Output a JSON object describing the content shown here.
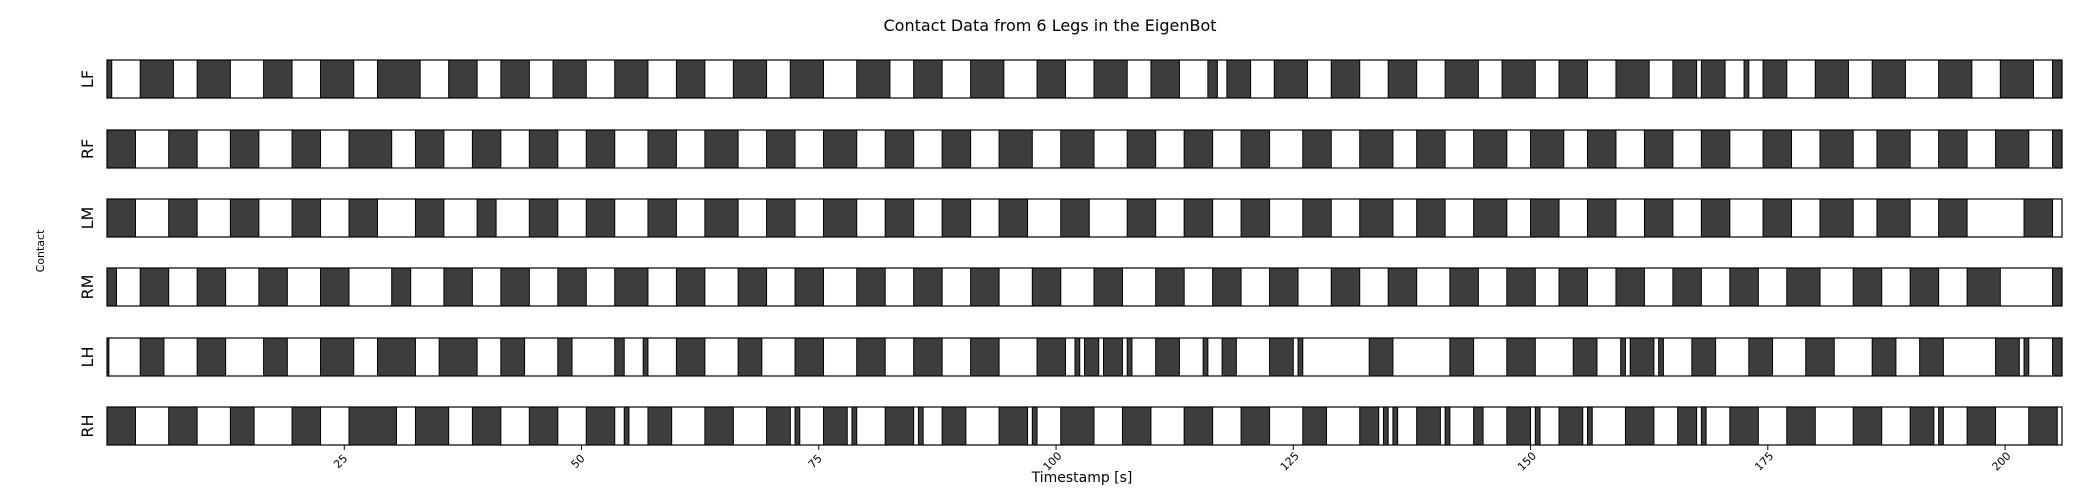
{
  "chart_data": {
    "type": "gait-contact-raster",
    "title": "Contact Data from 6 Legs in the EigenBot",
    "xlabel": "Timestamp [s]",
    "ylabel": "Contact",
    "xlim": [
      0,
      206
    ],
    "xticks": [
      25,
      50,
      75,
      100,
      125,
      150,
      175,
      200
    ],
    "grid": false,
    "colors": {
      "contact": "#3d3d3d",
      "swing": "#ffffff",
      "edge": "#000000"
    },
    "legs": [
      {
        "name": "LF",
        "contact": [
          [
            0,
            0.5
          ],
          [
            3.5,
            7
          ],
          [
            9.5,
            13
          ],
          [
            16.5,
            19.5
          ],
          [
            22.5,
            26
          ],
          [
            28.5,
            33
          ],
          [
            36,
            39
          ],
          [
            41.5,
            44.5
          ],
          [
            47,
            50.5
          ],
          [
            53.5,
            57
          ],
          [
            60,
            63
          ],
          [
            66,
            69.5
          ],
          [
            72,
            75.5
          ],
          [
            79,
            82.5
          ],
          [
            85,
            88
          ],
          [
            91,
            94.5
          ],
          [
            98,
            101
          ],
          [
            104,
            107.5
          ],
          [
            110,
            113
          ],
          [
            116,
            117
          ],
          [
            118,
            120.5
          ],
          [
            123,
            126.5
          ],
          [
            129,
            132
          ],
          [
            135,
            138
          ],
          [
            141,
            144.5
          ],
          [
            147,
            150.5
          ],
          [
            153,
            156
          ],
          [
            159,
            162.5
          ],
          [
            165,
            167.5
          ],
          [
            168,
            170.5
          ],
          [
            172.5,
            173
          ],
          [
            174.5,
            177
          ],
          [
            180,
            183.5
          ],
          [
            186,
            189.5
          ],
          [
            193,
            196.5
          ],
          [
            199.5,
            203
          ],
          [
            205,
            206
          ]
        ]
      },
      {
        "name": "RF",
        "contact": [
          [
            0,
            3
          ],
          [
            6.5,
            9.5
          ],
          [
            13,
            16
          ],
          [
            19.5,
            22.5
          ],
          [
            25.5,
            30
          ],
          [
            32.5,
            35.5
          ],
          [
            38.5,
            41.5
          ],
          [
            44.5,
            47.5
          ],
          [
            50.5,
            53.5
          ],
          [
            57,
            60
          ],
          [
            63,
            66.5
          ],
          [
            69.5,
            72.5
          ],
          [
            75.5,
            79
          ],
          [
            82,
            85
          ],
          [
            88,
            91
          ],
          [
            94,
            97.5
          ],
          [
            100.5,
            104
          ],
          [
            107.5,
            110.5
          ],
          [
            113.5,
            116.5
          ],
          [
            119.5,
            122.5
          ],
          [
            126,
            129
          ],
          [
            132,
            135.5
          ],
          [
            138,
            141
          ],
          [
            144,
            147.5
          ],
          [
            150,
            153.5
          ],
          [
            156,
            159
          ],
          [
            162,
            165
          ],
          [
            168,
            171
          ],
          [
            174.5,
            177.5
          ],
          [
            180.5,
            184
          ],
          [
            186.5,
            190
          ],
          [
            193,
            196
          ],
          [
            199,
            202.5
          ],
          [
            205,
            206
          ]
        ]
      },
      {
        "name": "LM",
        "contact": [
          [
            0,
            3
          ],
          [
            6.5,
            9.5
          ],
          [
            13,
            16
          ],
          [
            19.5,
            22.5
          ],
          [
            25.5,
            28.5
          ],
          [
            32.5,
            35.5
          ],
          [
            39,
            41
          ],
          [
            44.5,
            47.5
          ],
          [
            50.5,
            53.5
          ],
          [
            57,
            60
          ],
          [
            63,
            66.5
          ],
          [
            69.5,
            72.5
          ],
          [
            75.5,
            79
          ],
          [
            82,
            85
          ],
          [
            88,
            91
          ],
          [
            94,
            97
          ],
          [
            100.5,
            103.5
          ],
          [
            107.5,
            110.5
          ],
          [
            113.5,
            116.5
          ],
          [
            119.5,
            122.5
          ],
          [
            126,
            129
          ],
          [
            132,
            135.5
          ],
          [
            138,
            141
          ],
          [
            144,
            147.5
          ],
          [
            150,
            153
          ],
          [
            156,
            159
          ],
          [
            162,
            165
          ],
          [
            168,
            171
          ],
          [
            174.5,
            177.5
          ],
          [
            180.5,
            184
          ],
          [
            186.5,
            190
          ],
          [
            193,
            196
          ],
          [
            202,
            205
          ]
        ]
      },
      {
        "name": "RM",
        "contact": [
          [
            0,
            1
          ],
          [
            3.5,
            6.5
          ],
          [
            9.5,
            12.5
          ],
          [
            16,
            19
          ],
          [
            22.5,
            25.5
          ],
          [
            30,
            32
          ],
          [
            35.5,
            38.5
          ],
          [
            41.5,
            44.5
          ],
          [
            47.5,
            50.5
          ],
          [
            53.5,
            57
          ],
          [
            60,
            63
          ],
          [
            66.5,
            69.5
          ],
          [
            72.5,
            75.5
          ],
          [
            79,
            82
          ],
          [
            85,
            88
          ],
          [
            91,
            94
          ],
          [
            97.5,
            100.5
          ],
          [
            104,
            107
          ],
          [
            110.5,
            113.5
          ],
          [
            116.5,
            119.5
          ],
          [
            122.5,
            125.5
          ],
          [
            129,
            132
          ],
          [
            135,
            138
          ],
          [
            141.5,
            144.5
          ],
          [
            147.5,
            150.5
          ],
          [
            153,
            156
          ],
          [
            159,
            162
          ],
          [
            165,
            168
          ],
          [
            171,
            174
          ],
          [
            177,
            180.5
          ],
          [
            184,
            187
          ],
          [
            190,
            193
          ],
          [
            196,
            199.5
          ],
          [
            205,
            206
          ]
        ]
      },
      {
        "name": "LH",
        "contact": [
          [
            0,
            0.2
          ],
          [
            3.5,
            6
          ],
          [
            9.5,
            12.5
          ],
          [
            16.5,
            19
          ],
          [
            22.5,
            26
          ],
          [
            28.5,
            32.5
          ],
          [
            35,
            39
          ],
          [
            41.5,
            44
          ],
          [
            47.5,
            49
          ],
          [
            53.5,
            54.5
          ],
          [
            56.5,
            57
          ],
          [
            60,
            63
          ],
          [
            66.5,
            69
          ],
          [
            72.5,
            75.5
          ],
          [
            79,
            82
          ],
          [
            85,
            88
          ],
          [
            91,
            94
          ],
          [
            98,
            101
          ],
          [
            102,
            102.5
          ],
          [
            103,
            104.5
          ],
          [
            105,
            107
          ],
          [
            107.5,
            108
          ],
          [
            110.5,
            113
          ],
          [
            115.5,
            116
          ],
          [
            117.5,
            119
          ],
          [
            122.5,
            125
          ],
          [
            125.5,
            126
          ],
          [
            133,
            135.5
          ],
          [
            141.5,
            144
          ],
          [
            147.5,
            150.5
          ],
          [
            154.5,
            157
          ],
          [
            159.5,
            160
          ],
          [
            160.5,
            163
          ],
          [
            163.5,
            164
          ],
          [
            167,
            169.5
          ],
          [
            173,
            175.5
          ],
          [
            179,
            182
          ],
          [
            186,
            188.5
          ],
          [
            191,
            193.5
          ],
          [
            199,
            201.5
          ],
          [
            202,
            202.5
          ],
          [
            205,
            206
          ]
        ]
      },
      {
        "name": "RH",
        "contact": [
          [
            0,
            3
          ],
          [
            6.5,
            9.5
          ],
          [
            13,
            15.5
          ],
          [
            19.5,
            22.5
          ],
          [
            25.5,
            30.5
          ],
          [
            32.5,
            36
          ],
          [
            38.5,
            41.5
          ],
          [
            44.5,
            47.5
          ],
          [
            50.5,
            53.5
          ],
          [
            54.5,
            55
          ],
          [
            57,
            59.5
          ],
          [
            63,
            66
          ],
          [
            69.5,
            72
          ],
          [
            72.5,
            73
          ],
          [
            75.5,
            78
          ],
          [
            78.5,
            79
          ],
          [
            82,
            85
          ],
          [
            85.5,
            86
          ],
          [
            88,
            90.5
          ],
          [
            94,
            97
          ],
          [
            97.5,
            98
          ],
          [
            100.5,
            104
          ],
          [
            107,
            110
          ],
          [
            113.5,
            116.5
          ],
          [
            119.5,
            122.5
          ],
          [
            126,
            128.5
          ],
          [
            132,
            134
          ],
          [
            134.5,
            135
          ],
          [
            135.5,
            136
          ],
          [
            138,
            140.5
          ],
          [
            141,
            141.5
          ],
          [
            144,
            145
          ],
          [
            147.5,
            150
          ],
          [
            150.5,
            151
          ],
          [
            153,
            155.5
          ],
          [
            156,
            156.5
          ],
          [
            160,
            163
          ],
          [
            165.5,
            167.5
          ],
          [
            168,
            168.5
          ],
          [
            171,
            174
          ],
          [
            177,
            180
          ],
          [
            184,
            187
          ],
          [
            190,
            192.5
          ],
          [
            193,
            193.5
          ],
          [
            196,
            199
          ],
          [
            202.5,
            205.5
          ]
        ]
      }
    ]
  }
}
